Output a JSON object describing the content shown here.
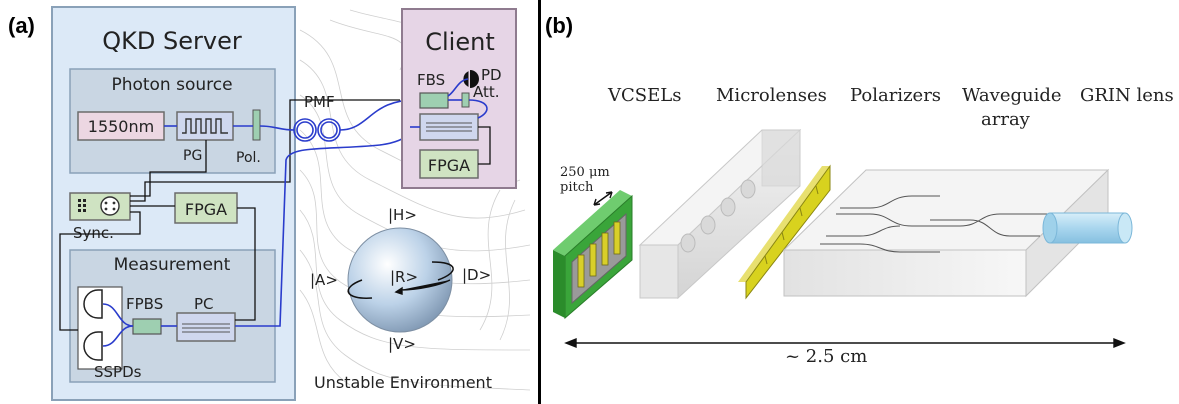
{
  "panel_a": {
    "tag": "(a)",
    "server_title": "QKD Server",
    "photon_source_title": "Photon source",
    "laser": "1550nm",
    "pg": "PG",
    "pol": "Pol.",
    "pmf": "PMF",
    "sync": "Sync.",
    "fpga": "FPGA",
    "measurement_title": "Measurement",
    "fpbs": "FPBS",
    "pc": "PC",
    "sspds": "SSPDs",
    "client_title": "Client",
    "fbs": "FBS",
    "pd": "PD",
    "att": "Att.",
    "client_fpga": "FPGA",
    "state_h": "|H>",
    "state_v": "|V>",
    "state_a": "|A>",
    "state_d": "|D>",
    "state_r": "|R>",
    "environment": "Unstable Environment"
  },
  "panel_b": {
    "tag": "(b)",
    "vcsels": "VCSELs",
    "microlenses": "Microlenses",
    "polarizers": "Polarizers",
    "waveguide_1": "Waveguide",
    "waveguide_2": "array",
    "grin": "GRIN lens",
    "pitch_1": "250 μm",
    "pitch_2": "pitch",
    "length": "~ 2.5 cm"
  },
  "colors": {
    "server_bg": "#dce9f7",
    "server_border": "#8aa1b8",
    "inner_bg": "#c9d6e3",
    "client_bg": "#e6d5e6",
    "fpga_green": "#cfe3c2",
    "laser_pink": "#ecd7e2",
    "fiber_blue": "#2a3ccc",
    "pcb_green": "#3aa53a",
    "polarizer_yellow": "#d8d21e"
  }
}
